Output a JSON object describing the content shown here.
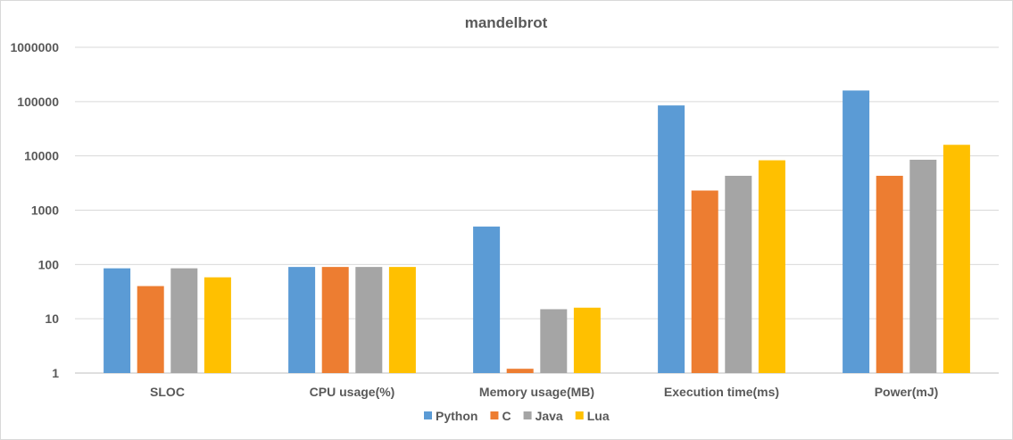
{
  "chart_data": {
    "type": "bar",
    "title": "mandelbrot",
    "xlabel": "",
    "ylabel": "",
    "yscale": "log",
    "ylim": [
      1,
      1000000
    ],
    "yticks": [
      "1",
      "10",
      "100",
      "1000",
      "10000",
      "100000",
      "1000000"
    ],
    "grid": true,
    "legend_position": "bottom",
    "categories": [
      "SLOC",
      "CPU usage(%)",
      "Memory usage(MB)",
      "Execution time(ms)",
      "Power(mJ)"
    ],
    "series": [
      {
        "name": "Python",
        "color": "#5b9bd5",
        "values": [
          85,
          90,
          500,
          85000,
          160000
        ]
      },
      {
        "name": "C",
        "color": "#ed7d31",
        "values": [
          40,
          90,
          1.2,
          2300,
          4300
        ]
      },
      {
        "name": "Java",
        "color": "#a5a5a5",
        "values": [
          85,
          90,
          15,
          4300,
          8500
        ]
      },
      {
        "name": "Lua",
        "color": "#ffc000",
        "values": [
          58,
          90,
          16,
          8300,
          16000
        ]
      }
    ]
  }
}
